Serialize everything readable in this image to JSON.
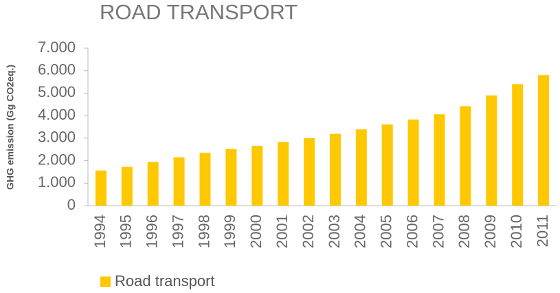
{
  "chart_data": {
    "type": "bar",
    "title": "ROAD TRANSPORT",
    "y_label": "GHG emission (Gg CO2eq.)",
    "categories": [
      "1994",
      "1995",
      "1996",
      "1997",
      "1998",
      "1999",
      "2000",
      "2001",
      "2002",
      "2003",
      "2004",
      "2005",
      "2006",
      "2007",
      "2008",
      "2009",
      "2010",
      "2011"
    ],
    "series": [
      {
        "name": "Road transport",
        "color": "#ffc800",
        "values": [
          1560,
          1720,
          1940,
          2150,
          2350,
          2520,
          2660,
          2830,
          3000,
          3190,
          3390,
          3610,
          3830,
          4060,
          4420,
          4900,
          5400,
          5800
        ]
      }
    ],
    "ylim": [
      0,
      7000
    ],
    "yticks": [
      0,
      {
        "value": 1000,
        "label": "1.000"
      },
      {
        "value": 2000,
        "label": "2.000"
      },
      {
        "value": 3000,
        "label": "3.000"
      },
      {
        "value": 4000,
        "label": "4.000"
      },
      {
        "value": 5000,
        "label": "5.000"
      },
      {
        "value": 6000,
        "label": "6.000"
      },
      {
        "value": 7000,
        "label": "7.000"
      }
    ],
    "grid": false,
    "legend": "bottom"
  }
}
